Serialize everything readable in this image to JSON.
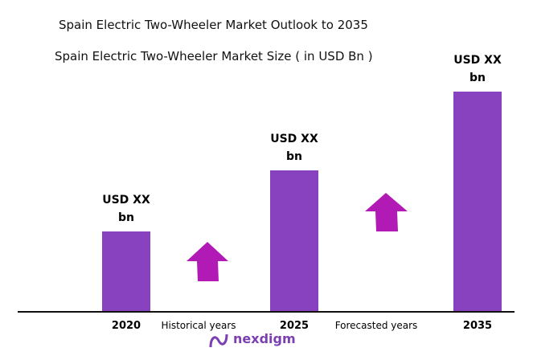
{
  "chart_data": {
    "type": "bar",
    "title": "Spain Electric Two-Wheeler Market Outlook to 2035",
    "subtitle": "Spain Electric Two-Wheeler Market Size ( in USD Bn )",
    "categories": [
      "2020",
      "2025",
      "2035"
    ],
    "values": [
      99,
      175,
      273
    ],
    "value_labels": [
      "USD XX bn",
      "USD XX bn",
      "USD XX bn"
    ],
    "color": "#8942bf",
    "annotations": [
      "Historical years",
      "Forecasted years"
    ]
  },
  "logo": "nexdigm"
}
